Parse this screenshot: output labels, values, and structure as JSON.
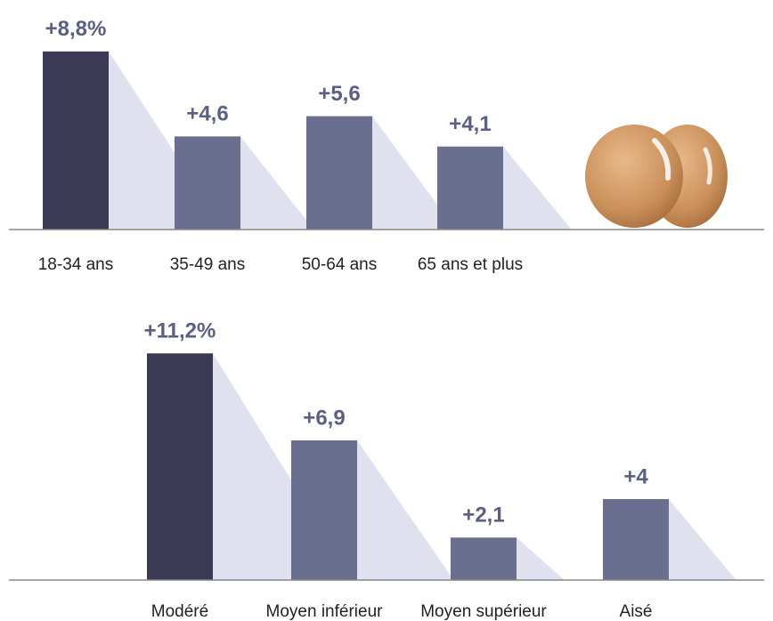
{
  "chart_data": [
    {
      "type": "bar",
      "categories": [
        "18-34 ans",
        "35-49 ans",
        "50-64 ans",
        "65 ans et plus"
      ],
      "values": [
        8.8,
        4.6,
        5.6,
        4.1
      ],
      "value_labels": [
        "+8,8%",
        "+4,6",
        "+5,6",
        "+4,1"
      ],
      "colors": [
        "#3a3a55",
        "#6b6f8f",
        "#6b6f8f",
        "#6b6f8f"
      ]
    },
    {
      "type": "bar",
      "categories": [
        "Modéré",
        "Moyen inférieur",
        "Moyen supérieur",
        "Aisé"
      ],
      "values": [
        11.2,
        6.9,
        2.1,
        4
      ],
      "value_labels": [
        "+11,2%",
        "+6,9",
        "+2,1",
        "+4"
      ],
      "colors": [
        "#3a3a55",
        "#6b6f8f",
        "#6b6f8f",
        "#6b6f8f"
      ]
    }
  ]
}
